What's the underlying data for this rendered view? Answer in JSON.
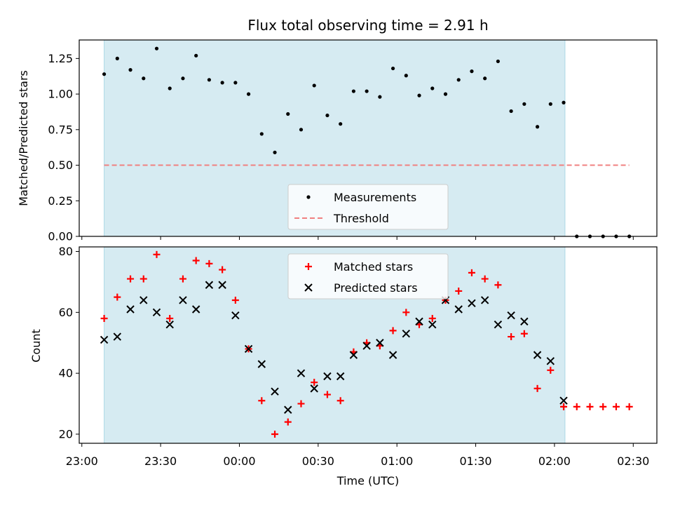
{
  "chart_data": {
    "title": "Flux total observing time = 2.91 h",
    "xlabel": "Time (UTC)",
    "x_unit": "minutes after 23:00 UTC",
    "x_ticks": [
      0,
      30,
      60,
      90,
      120,
      150,
      180,
      210
    ],
    "x_tick_labels": [
      "23:00",
      "23:30",
      "00:00",
      "00:30",
      "01:00",
      "01:30",
      "02:00",
      "02:30"
    ],
    "xlim": [
      -1,
      219
    ],
    "observing_window": {
      "start": 8.5,
      "end": 184,
      "color": "#add8e6"
    },
    "panels": [
      {
        "name": "ratio",
        "type": "scatter",
        "ylabel": "Matched/Predicted stars",
        "ylim": [
          0,
          1.38
        ],
        "y_ticks": [
          0,
          0.25,
          0.5,
          0.75,
          1.0,
          1.25
        ],
        "y_tick_labels": [
          "0.00",
          "0.25",
          "0.50",
          "0.75",
          "1.00",
          "1.25"
        ],
        "legend_position": "lower-center",
        "series": [
          {
            "name": "Measurements",
            "marker": "dot",
            "color": "#000000",
            "points": [
              [
                8.5,
                1.14
              ],
              [
                13.5,
                1.25
              ],
              [
                18.5,
                1.17
              ],
              [
                23.5,
                1.11
              ],
              [
                28.5,
                1.32
              ],
              [
                33.5,
                1.04
              ],
              [
                38.5,
                1.11
              ],
              [
                43.5,
                1.27
              ],
              [
                48.5,
                1.1
              ],
              [
                53.5,
                1.08
              ],
              [
                58.5,
                1.08
              ],
              [
                63.5,
                1.0
              ],
              [
                68.5,
                0.72
              ],
              [
                73.5,
                0.59
              ],
              [
                78.5,
                0.86
              ],
              [
                83.5,
                0.75
              ],
              [
                88.5,
                1.06
              ],
              [
                93.5,
                0.85
              ],
              [
                98.5,
                0.79
              ],
              [
                103.5,
                1.02
              ],
              [
                108.5,
                1.02
              ],
              [
                113.5,
                0.98
              ],
              [
                118.5,
                1.18
              ],
              [
                123.5,
                1.13
              ],
              [
                128.5,
                0.99
              ],
              [
                133.5,
                1.04
              ],
              [
                138.5,
                1.0
              ],
              [
                143.5,
                1.1
              ],
              [
                148.5,
                1.16
              ],
              [
                153.5,
                1.11
              ],
              [
                158.5,
                1.23
              ],
              [
                163.5,
                0.88
              ],
              [
                168.5,
                0.93
              ],
              [
                173.5,
                0.77
              ],
              [
                178.5,
                0.93
              ],
              [
                183.5,
                0.94
              ],
              [
                188.5,
                0.0
              ],
              [
                193.5,
                0.0
              ],
              [
                198.5,
                0.0
              ],
              [
                203.5,
                0.0
              ],
              [
                208.5,
                0.0
              ]
            ]
          },
          {
            "name": "Threshold",
            "marker": "dashed-line",
            "color": "#f08080",
            "x_range": [
              8.5,
              208.5
            ],
            "value": 0.5
          }
        ]
      },
      {
        "name": "counts",
        "type": "scatter",
        "ylabel": "Count",
        "ylim": [
          17,
          81.5
        ],
        "y_ticks": [
          20,
          40,
          60,
          80
        ],
        "y_tick_labels": [
          "20",
          "40",
          "60",
          "80"
        ],
        "legend_position": "top-center",
        "series": [
          {
            "name": "Matched stars",
            "marker": "plus",
            "color": "#ff0000",
            "points": [
              [
                8.5,
                58
              ],
              [
                13.5,
                65
              ],
              [
                18.5,
                71
              ],
              [
                23.5,
                71
              ],
              [
                28.5,
                79
              ],
              [
                33.5,
                58
              ],
              [
                38.5,
                71
              ],
              [
                43.5,
                77
              ],
              [
                48.5,
                76
              ],
              [
                53.5,
                74
              ],
              [
                58.5,
                64
              ],
              [
                63.5,
                48
              ],
              [
                68.5,
                31
              ],
              [
                73.5,
                20
              ],
              [
                78.5,
                24
              ],
              [
                83.5,
                30
              ],
              [
                88.5,
                37
              ],
              [
                93.5,
                33
              ],
              [
                98.5,
                31
              ],
              [
                103.5,
                47
              ],
              [
                108.5,
                50
              ],
              [
                113.5,
                49
              ],
              [
                118.5,
                54
              ],
              [
                123.5,
                60
              ],
              [
                128.5,
                56
              ],
              [
                133.5,
                58
              ],
              [
                138.5,
                64
              ],
              [
                143.5,
                67
              ],
              [
                148.5,
                73
              ],
              [
                153.5,
                71
              ],
              [
                158.5,
                69
              ],
              [
                163.5,
                52
              ],
              [
                168.5,
                53
              ],
              [
                173.5,
                35
              ],
              [
                178.5,
                41
              ],
              [
                183.5,
                29
              ],
              [
                188.5,
                29
              ],
              [
                193.5,
                29
              ],
              [
                198.5,
                29
              ],
              [
                203.5,
                29
              ],
              [
                208.5,
                29
              ]
            ]
          },
          {
            "name": "Predicted stars",
            "marker": "x",
            "color": "#000000",
            "points": [
              [
                8.5,
                51
              ],
              [
                13.5,
                52
              ],
              [
                18.5,
                61
              ],
              [
                23.5,
                64
              ],
              [
                28.5,
                60
              ],
              [
                33.5,
                56
              ],
              [
                38.5,
                64
              ],
              [
                43.5,
                61
              ],
              [
                48.5,
                69
              ],
              [
                53.5,
                69
              ],
              [
                58.5,
                59
              ],
              [
                63.5,
                48
              ],
              [
                68.5,
                43
              ],
              [
                73.5,
                34
              ],
              [
                78.5,
                28
              ],
              [
                83.5,
                40
              ],
              [
                88.5,
                35
              ],
              [
                93.5,
                39
              ],
              [
                98.5,
                39
              ],
              [
                103.5,
                46
              ],
              [
                108.5,
                49
              ],
              [
                113.5,
                50
              ],
              [
                118.5,
                46
              ],
              [
                123.5,
                53
              ],
              [
                128.5,
                57
              ],
              [
                133.5,
                56
              ],
              [
                138.5,
                64
              ],
              [
                143.5,
                61
              ],
              [
                148.5,
                63
              ],
              [
                153.5,
                64
              ],
              [
                158.5,
                56
              ],
              [
                163.5,
                59
              ],
              [
                168.5,
                57
              ],
              [
                173.5,
                46
              ],
              [
                178.5,
                44
              ],
              [
                183.5,
                31
              ]
            ]
          }
        ]
      }
    ]
  }
}
